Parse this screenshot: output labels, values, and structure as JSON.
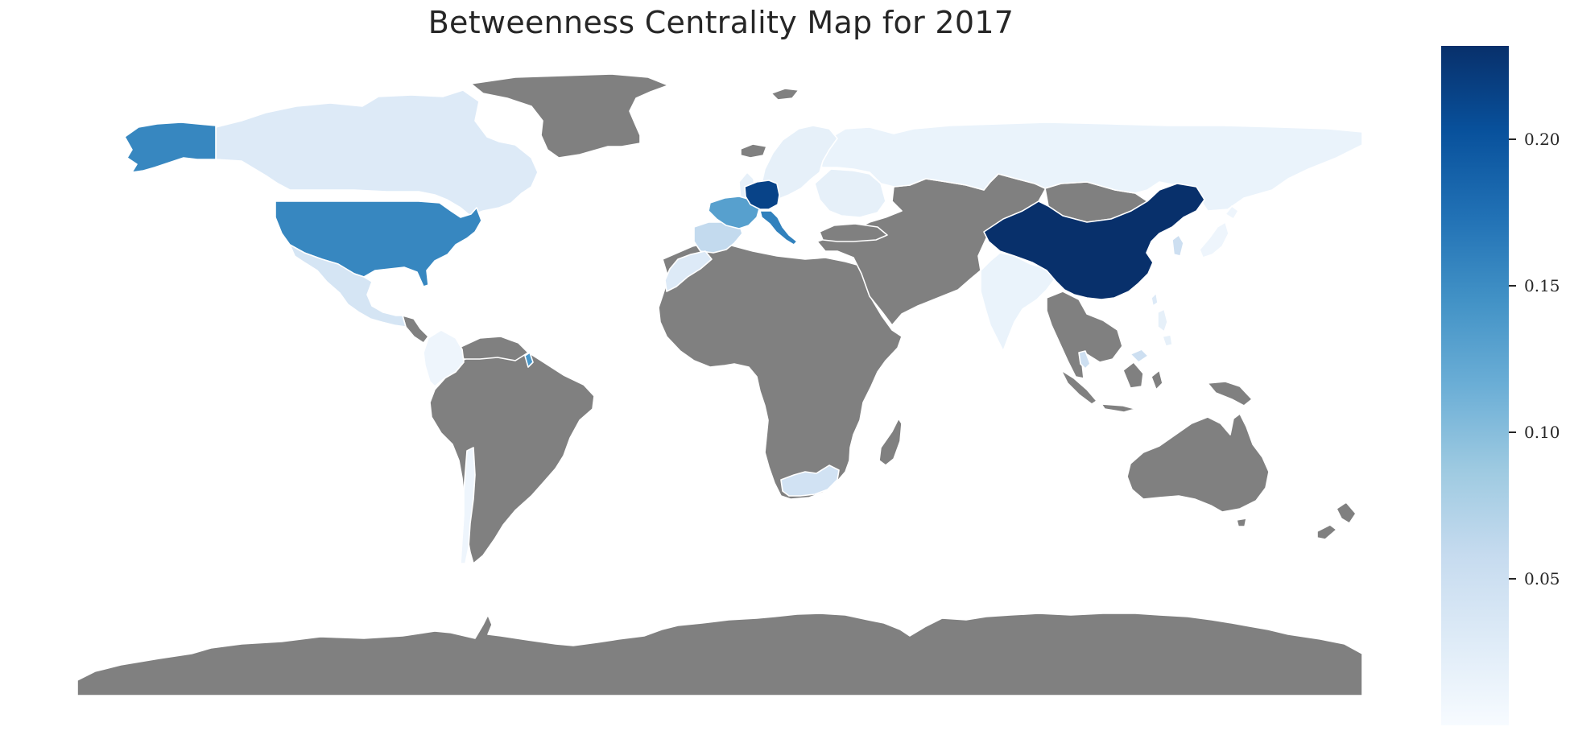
{
  "chart_data": {
    "type": "choropleth",
    "title": "Betweenness Centrality Map for 2017",
    "metric": "betweenness centrality",
    "year": 2017,
    "colormap": "Blues",
    "colors": {
      "no_data": "#808080",
      "border": "#ffffff",
      "background": "#ffffff",
      "ramp": [
        "#f7fbff",
        "#deebf7",
        "#c6dbef",
        "#9ecae1",
        "#6baed6",
        "#4292c6",
        "#2171b5",
        "#08519c",
        "#08306b"
      ]
    },
    "colorbar": {
      "range": [
        0.0,
        0.232
      ],
      "ticks": [
        0.05,
        0.1,
        0.15,
        0.2
      ],
      "tick_labels": [
        "0.05",
        "0.10",
        "0.15",
        "0.20"
      ],
      "placement": "right"
    },
    "regions": [
      {
        "id": "USA",
        "value": 0.155
      },
      {
        "id": "USA-Alaska",
        "value": 0.155
      },
      {
        "id": "CAN",
        "value": 0.03
      },
      {
        "id": "MEX",
        "value": 0.04
      },
      {
        "id": "CHN",
        "value": 0.232
      },
      {
        "id": "DEU",
        "value": 0.215
      },
      {
        "id": "FRA",
        "value": 0.13
      },
      {
        "id": "ITA",
        "value": 0.16
      },
      {
        "id": "ESP",
        "value": 0.06
      },
      {
        "id": "ZAF",
        "value": 0.045
      },
      {
        "id": "RUS",
        "value": 0.015
      },
      {
        "id": "IND",
        "value": 0.015
      },
      {
        "id": "SCANDINAVIA",
        "value": 0.02
      },
      {
        "id": "EASTERN-EUROPE",
        "value": 0.02
      },
      {
        "id": "BRITAIN",
        "value": 0.02
      },
      {
        "id": "COL",
        "value": 0.01
      },
      {
        "id": "GUY",
        "value": 0.14
      },
      {
        "id": "CHL",
        "value": 0.01
      },
      {
        "id": "MAR",
        "value": 0.03
      },
      {
        "id": "KOR",
        "value": 0.05
      },
      {
        "id": "JPN",
        "value": 0.01
      },
      {
        "id": "MYS",
        "value": 0.05
      },
      {
        "id": "PHL",
        "value": 0.02
      },
      {
        "id": "TWN",
        "value": 0.03
      }
    ]
  },
  "title": "Betweenness Centrality Map for 2017"
}
